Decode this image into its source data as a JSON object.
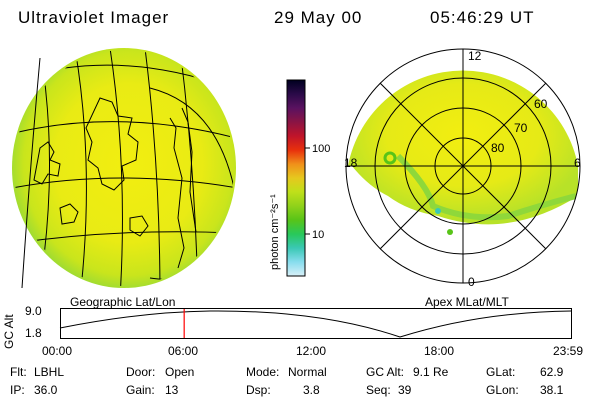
{
  "header": {
    "instrument": "Ultraviolet Imager",
    "date": "29 May 00",
    "time": "05:46:29 UT"
  },
  "left_panel": {
    "projection_label": "Geographic Lat/Lon"
  },
  "right_panel": {
    "projection_label": "Apex MLat/MLT",
    "mlt_labels": [
      "12",
      "18",
      "6",
      "0"
    ],
    "mlat_labels": [
      "60",
      "70",
      "80"
    ]
  },
  "colorbar": {
    "unit_label": "photon cm⁻²s⁻¹",
    "ticks": [
      "100",
      "10"
    ],
    "colors": [
      "#000020",
      "#2a0a48",
      "#5a1260",
      "#8a1444",
      "#c0142a",
      "#e8300c",
      "#f0901a",
      "#e6c81e",
      "#bfe01a",
      "#90d21a",
      "#58c418",
      "#28c85a",
      "#3ac8b4",
      "#88ddee",
      "#d8f0f8"
    ]
  },
  "altitude_plot": {
    "y_label": "GC Alt",
    "y_ticks": [
      "9.0",
      "1.8"
    ],
    "x_ticks": [
      "00:00",
      "06:00",
      "12:00",
      "18:00",
      "23:59"
    ],
    "current_time_fraction": 0.243,
    "marker_color": "#ff0000"
  },
  "status": {
    "flt_label": "Flt:",
    "flt_value": "LBHL",
    "ip_label": "IP:",
    "ip_value": "36.0",
    "door_label": "Door:",
    "door_value": "Open",
    "gain_label": "Gain:",
    "gain_value": "13",
    "mode_label": "Mode:",
    "mode_value": "Normal",
    "dsp_label": "Dsp:",
    "dsp_value": "3.8",
    "gcalt_label": "GC Alt:",
    "gcalt_value": "9.1 Re",
    "seq_label": "Seq:",
    "seq_value": "39",
    "glat_label": "GLat:",
    "glat_value": "62.9",
    "glon_label": "GLon:",
    "glon_value": "38.1"
  }
}
